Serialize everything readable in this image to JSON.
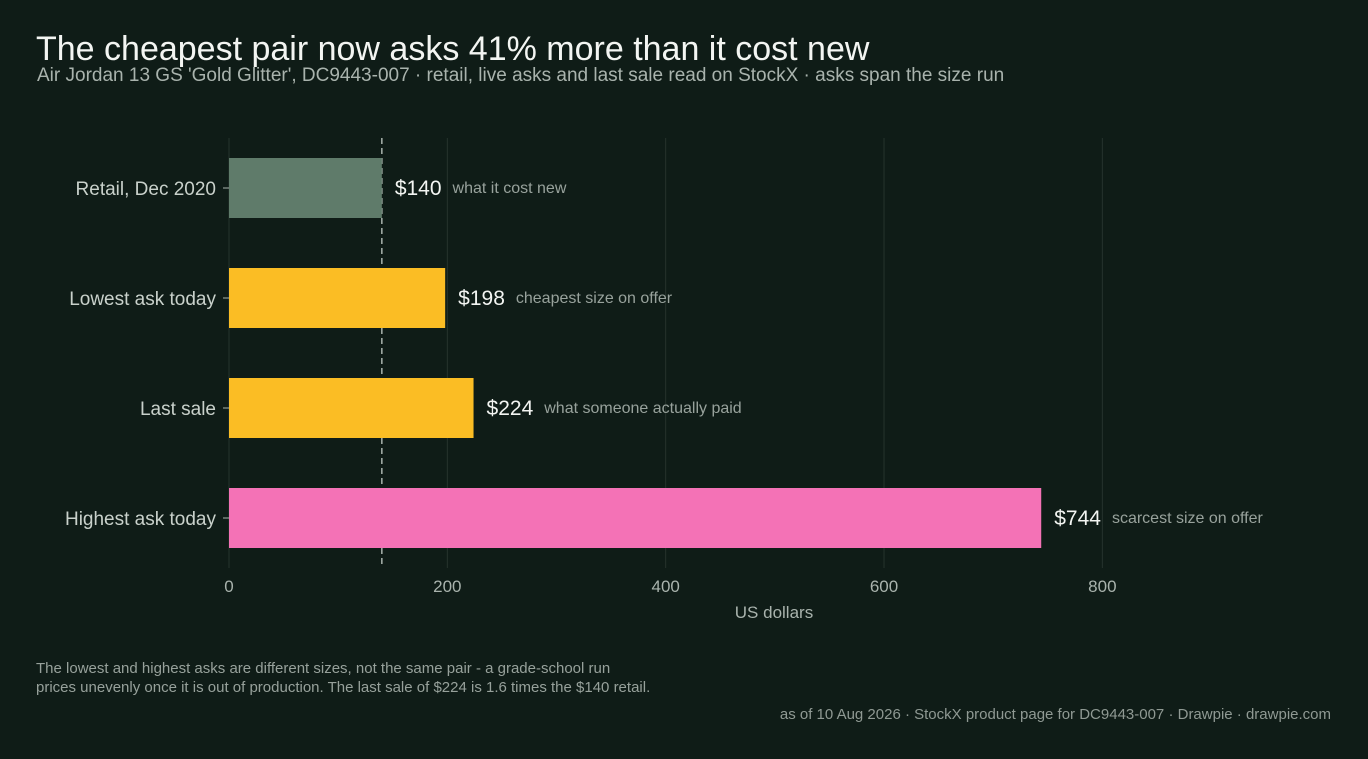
{
  "header": {
    "title": "The cheapest pair now asks 41% more than it cost new",
    "subtitle": "Air Jordan 13 GS 'Gold Glitter', DC9443-007 · retail, live asks and last sale read on StockX · asks span the size run"
  },
  "chart_data": {
    "type": "bar",
    "orientation": "horizontal",
    "categories": [
      "Retail, Dec 2020",
      "Lowest ask today",
      "Last sale",
      "Highest ask today"
    ],
    "values": [
      140,
      198,
      224,
      744
    ],
    "value_labels": [
      "$140",
      "$198",
      "$224",
      "$744"
    ],
    "annotations": [
      "what it cost new",
      "cheapest size on offer",
      "what someone actually paid",
      "scarcest size on offer"
    ],
    "colors": [
      "#5f7b6a",
      "#fbbd24",
      "#fbbd24",
      "#f472b6"
    ],
    "reference_line": 140,
    "xlabel": "US dollars",
    "xlim": [
      0,
      960
    ],
    "xticks": [
      0,
      200,
      400,
      600,
      800
    ],
    "grid": true
  },
  "footer": {
    "note_line1": "The lowest and highest asks are different sizes, not the same pair - a grade-school run",
    "note_line2": "prices unevenly once it is out of production. The last sale of $224 is 1.6 times the $140 retail.",
    "source": "as of 10 Aug 2026  ·  StockX product page for DC9443-007  ·  Drawpie · drawpie.com"
  },
  "theme": {
    "background": "#0f1c17",
    "grid": "#26332d",
    "text_primary": "#f3f5f2",
    "text_secondary": "#a9b3ad"
  }
}
